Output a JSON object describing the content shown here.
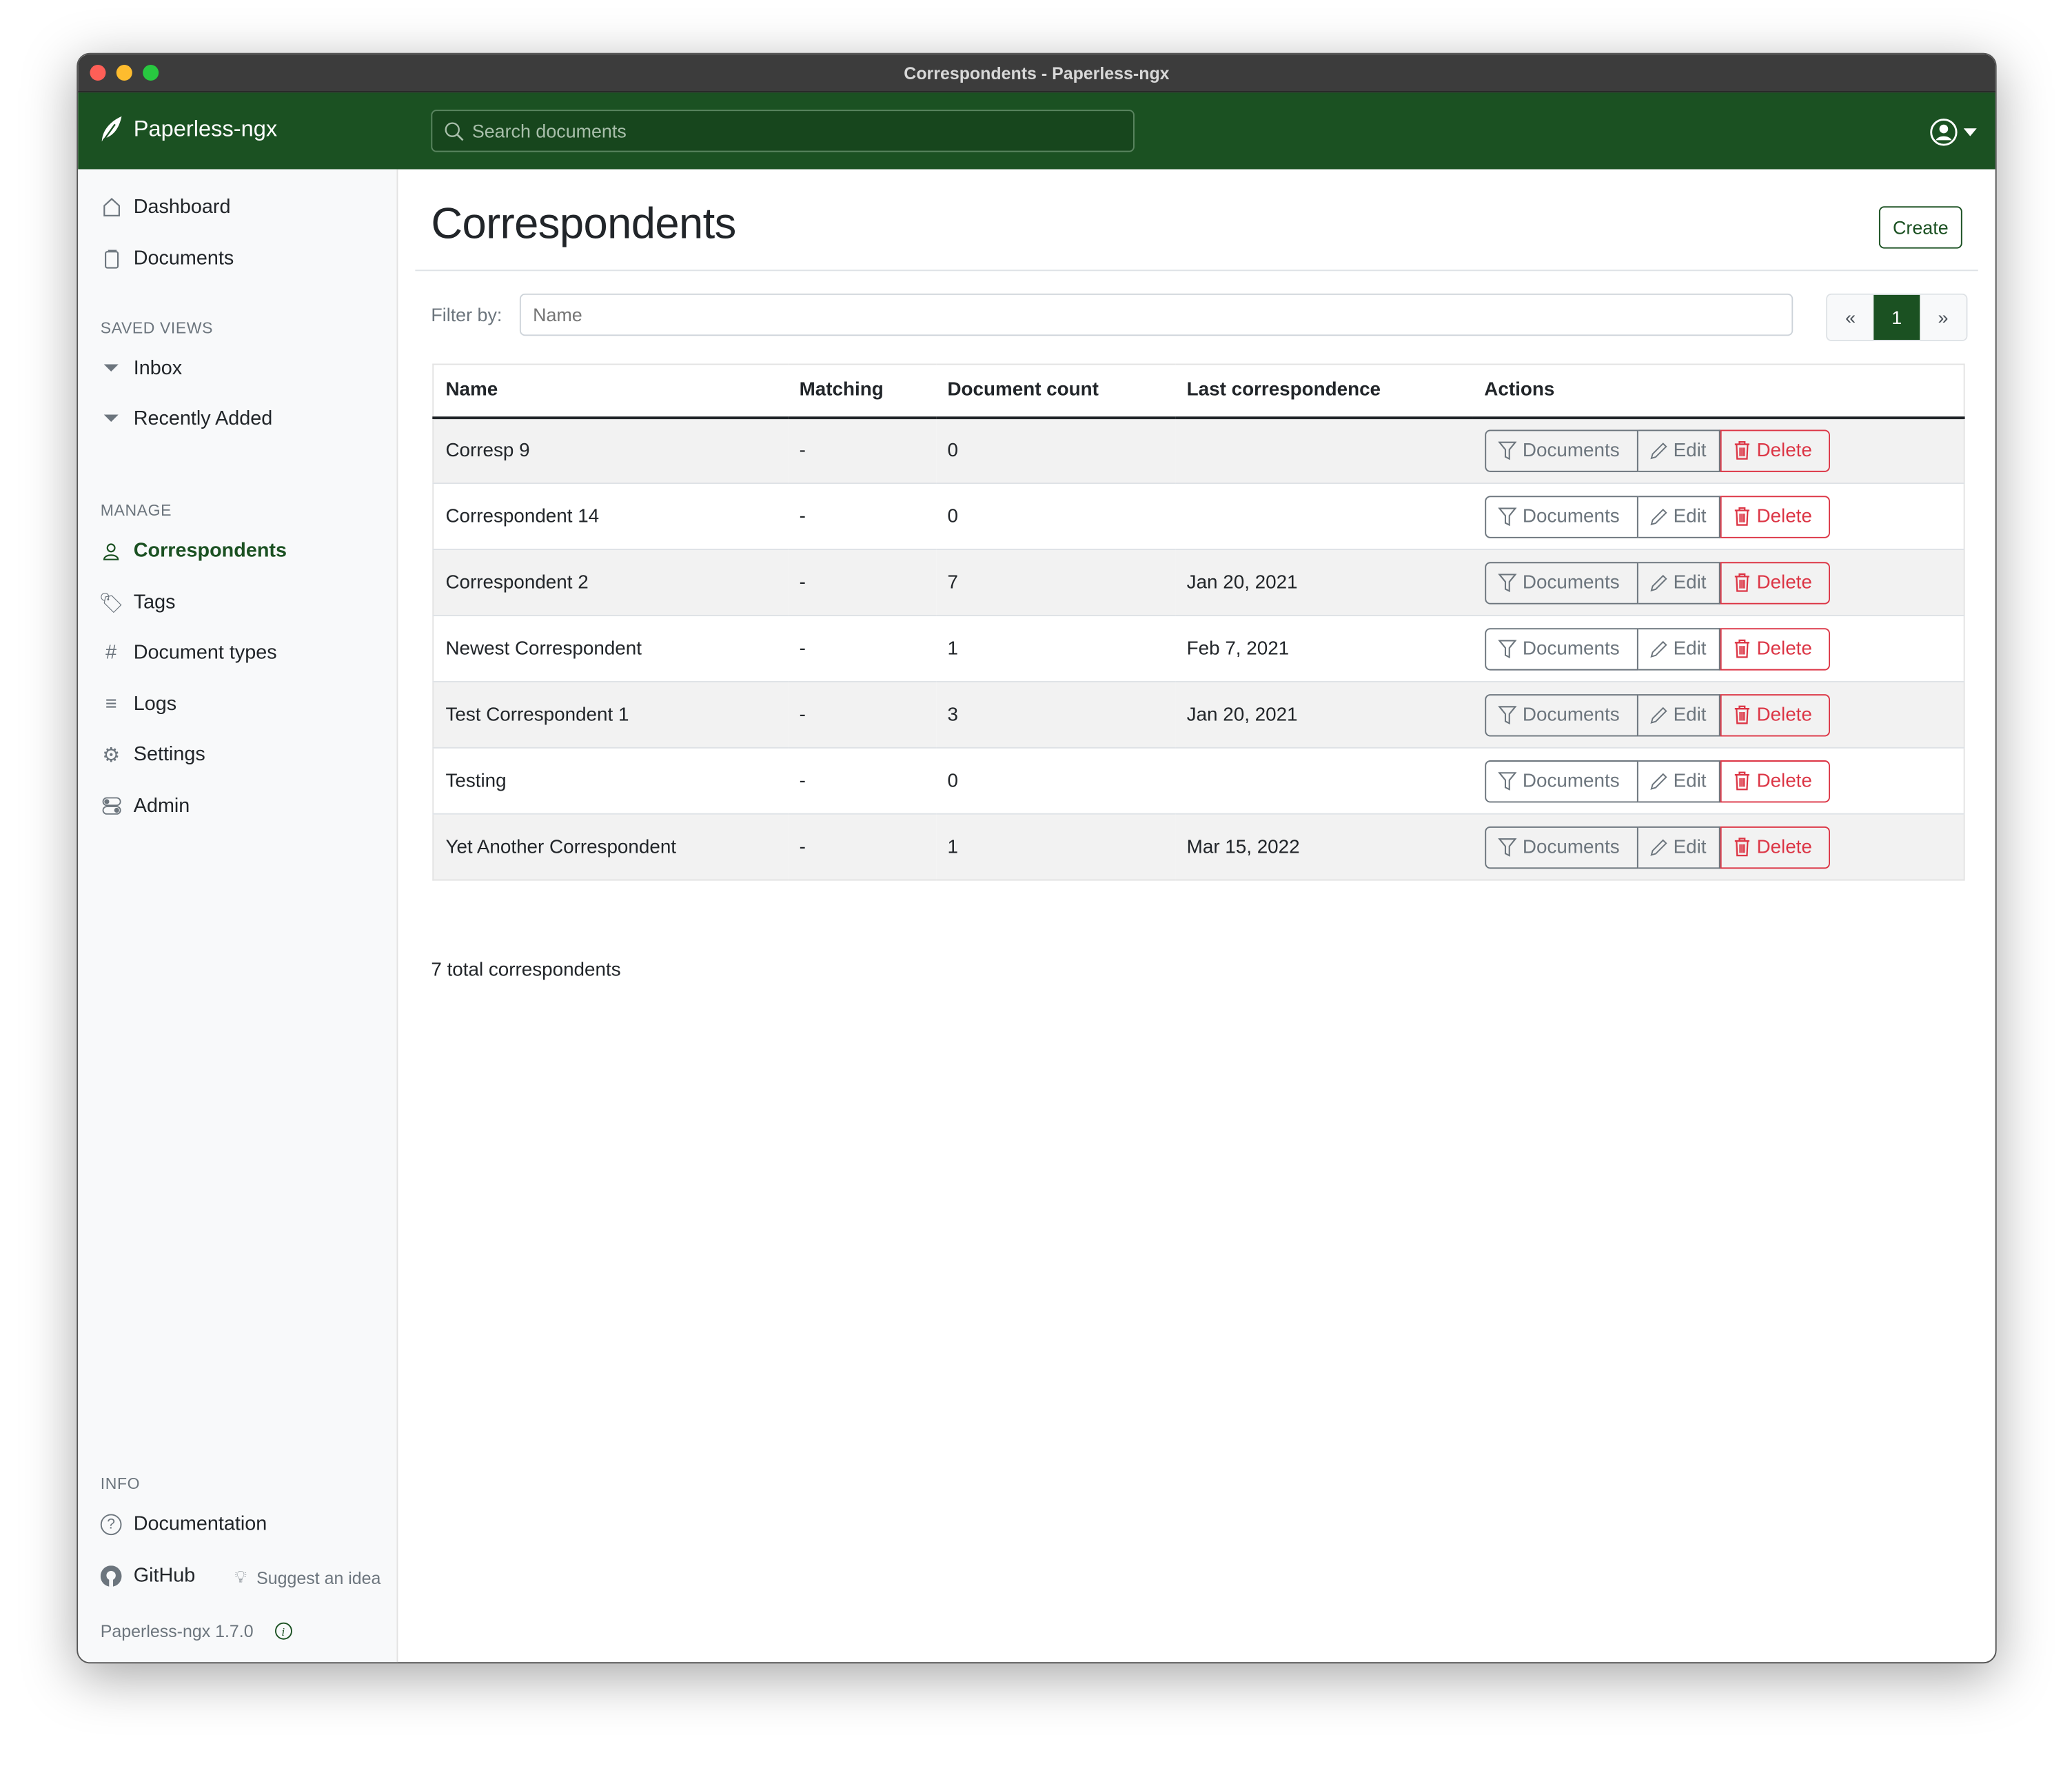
{
  "window": {
    "title": "Correspondents - Paperless-ngx"
  },
  "navbar": {
    "brand": "Paperless-ngx",
    "search_placeholder": "Search documents"
  },
  "sidebar": {
    "main": [
      {
        "label": "Dashboard",
        "icon": "house-icon"
      },
      {
        "label": "Documents",
        "icon": "files-icon"
      }
    ],
    "saved_views_heading": "SAVED VIEWS",
    "saved_views": [
      {
        "label": "Inbox",
        "icon": "funnel-icon"
      },
      {
        "label": "Recently Added",
        "icon": "funnel-icon"
      }
    ],
    "manage_heading": "MANAGE",
    "manage": [
      {
        "label": "Correspondents",
        "icon": "person-icon",
        "active": true
      },
      {
        "label": "Tags",
        "icon": "tags-icon"
      },
      {
        "label": "Document types",
        "icon": "hash-icon"
      },
      {
        "label": "Logs",
        "icon": "text-left-icon"
      },
      {
        "label": "Settings",
        "icon": "gear-icon"
      },
      {
        "label": "Admin",
        "icon": "toggles-icon"
      }
    ],
    "info_heading": "INFO",
    "documentation": "Documentation",
    "github": "GitHub",
    "suggest": "Suggest an idea",
    "version": "Paperless-ngx 1.7.0"
  },
  "main": {
    "title": "Correspondents",
    "create_label": "Create",
    "filter_label": "Filter by:",
    "filter_placeholder": "Name",
    "pagination": {
      "prev": "«",
      "current": "1",
      "next": "»"
    },
    "columns": [
      "Name",
      "Matching",
      "Document count",
      "Last correspondence",
      "Actions"
    ],
    "rows": [
      [
        "Corresp 9",
        "-",
        "0",
        ""
      ],
      [
        "Correspondent 14",
        "-",
        "0",
        ""
      ],
      [
        "Correspondent 2",
        "-",
        "7",
        "Jan 20, 2021"
      ],
      [
        "Newest Correspondent",
        "-",
        "1",
        "Feb 7, 2021"
      ],
      [
        "Test Correspondent 1",
        "-",
        "3",
        "Jan 20, 2021"
      ],
      [
        "Testing",
        "-",
        "0",
        ""
      ],
      [
        "Yet Another Correspondent",
        "-",
        "1",
        "Mar 15, 2022"
      ]
    ],
    "actions": {
      "documents": "Documents",
      "edit": "Edit",
      "delete": "Delete"
    },
    "total": "7 total correspondents"
  },
  "colors": {
    "primary": "#1b5122",
    "danger": "#dc3545",
    "secondary": "#6c757d"
  }
}
